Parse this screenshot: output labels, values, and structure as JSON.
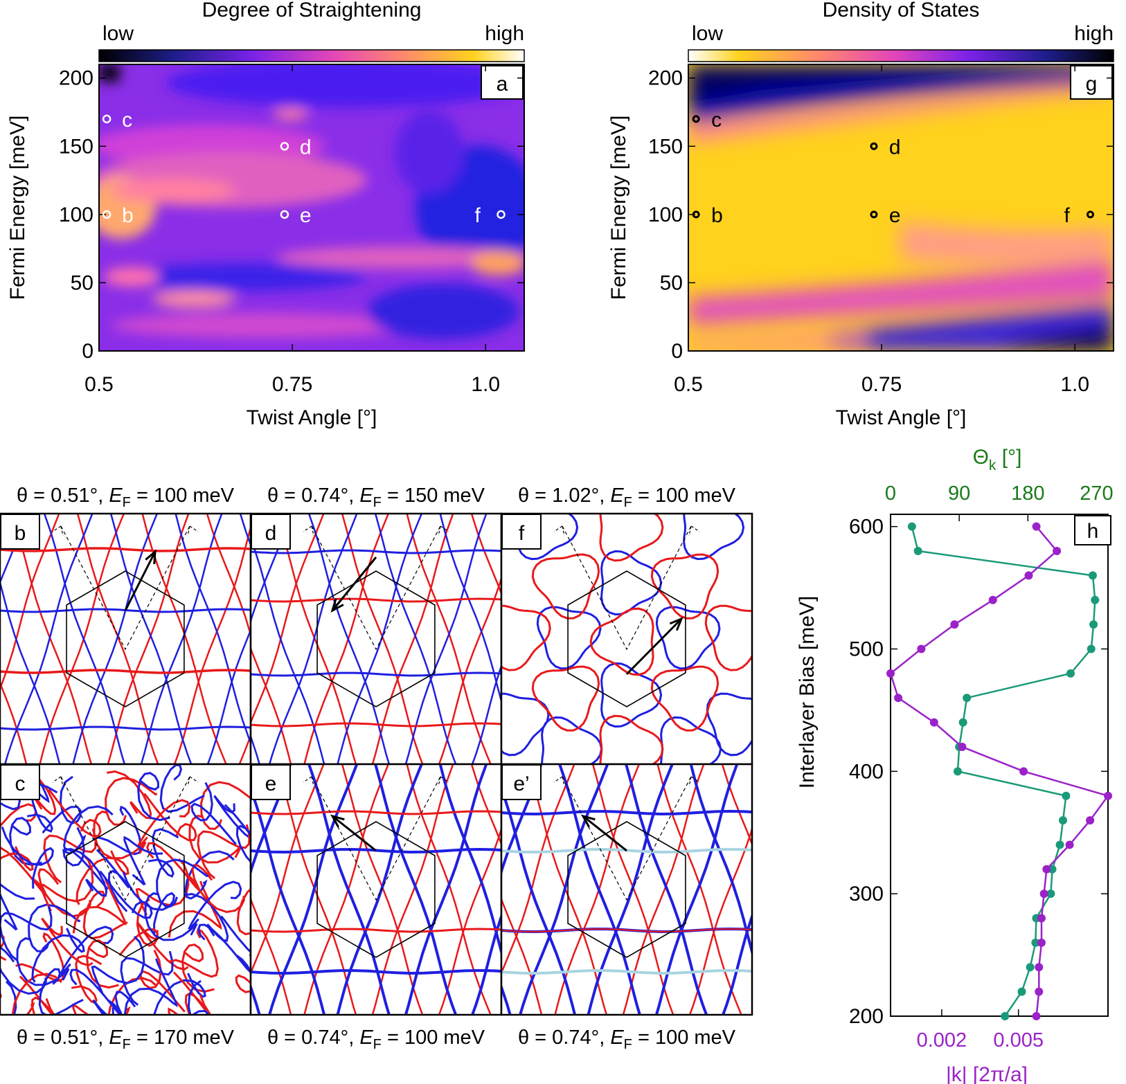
{
  "panel_a": {
    "title": "Degree of Straightening",
    "bar_low": "low",
    "bar_high": "high",
    "tag": "a",
    "xlabel": "Twist Angle [°]",
    "ylabel": "Fermi Energy [meV]",
    "xticks": [
      "0.5",
      "0.75",
      "1.0"
    ],
    "yticks": [
      "0",
      "50",
      "100",
      "150",
      "200"
    ],
    "markers": [
      {
        "label": "c",
        "theta": 0.51,
        "ef": 170
      },
      {
        "label": "d",
        "theta": 0.74,
        "ef": 150
      },
      {
        "label": "b",
        "theta": 0.51,
        "ef": 100
      },
      {
        "label": "e",
        "theta": 0.74,
        "ef": 100
      },
      {
        "label": "f",
        "theta": 1.02,
        "ef": 100
      }
    ]
  },
  "panel_g": {
    "title": "Density of States",
    "bar_low": "low",
    "bar_high": "high",
    "tag": "g",
    "xlabel": "Twist Angle [°]",
    "ylabel": "Fermi Energy [meV]",
    "xticks": [
      "0.5",
      "0.75",
      "1.0"
    ],
    "yticks": [
      "0",
      "50",
      "100",
      "150",
      "200"
    ],
    "markers": [
      {
        "label": "c",
        "theta": 0.51,
        "ef": 170
      },
      {
        "label": "d",
        "theta": 0.74,
        "ef": 150
      },
      {
        "label": "b",
        "theta": 0.51,
        "ef": 100
      },
      {
        "label": "e",
        "theta": 0.74,
        "ef": 100
      },
      {
        "label": "f",
        "theta": 1.02,
        "ef": 100
      }
    ]
  },
  "fermi_panels": [
    {
      "tag": "b",
      "caption": "θ = 0.51°, ",
      "ef_sym": "E",
      "ef_sub": "F",
      "ef_val": " = 100 meV"
    },
    {
      "tag": "d",
      "caption": "θ = 0.74°, ",
      "ef_sym": "E",
      "ef_sub": "F",
      "ef_val": " = 150 meV"
    },
    {
      "tag": "f",
      "caption": "θ = 1.02°, ",
      "ef_sym": "E",
      "ef_sub": "F",
      "ef_val": " = 100 meV"
    },
    {
      "tag": "c",
      "caption": "θ = 0.51°, ",
      "ef_sym": "E",
      "ef_sub": "F",
      "ef_val": " = 170 meV"
    },
    {
      "tag": "e",
      "caption": "θ = 0.74°, ",
      "ef_sym": "E",
      "ef_sub": "F",
      "ef_val": " = 100 meV"
    },
    {
      "tag": "e’",
      "caption": "θ = 0.74°, ",
      "ef_sym": "E",
      "ef_sub": "F",
      "ef_val": " = 100 meV"
    }
  ],
  "colors": {
    "red": "#e8191b",
    "blue": "#1f1fe0",
    "lightblue": "#a8d4e0",
    "green": "#1a9a78",
    "purple": "#9a22c8"
  },
  "chart_data": {
    "type": "line",
    "tag": "h",
    "ylabel": "Interlayer Bias [meV]",
    "ylim": [
      200,
      610
    ],
    "yticks": [
      "200",
      "300",
      "400",
      "500",
      "600"
    ],
    "top_axis_label": "Θ",
    "top_axis_sub": "k",
    "top_axis_unit": " [°]",
    "top_ticks": [
      "0",
      "90",
      "180",
      "270"
    ],
    "top_range": [
      0,
      285
    ],
    "bottom_axis_label": "|k| [2π/a]",
    "bottom_ticks": [
      "0.002",
      "0.005"
    ],
    "bottom_range": [
      0,
      0.0085
    ],
    "series": [
      {
        "name": "Θk",
        "axis": "top",
        "color": "#1a9a78",
        "y": [
          600,
          580,
          560,
          540,
          520,
          500,
          480,
          460,
          440,
          420,
          400,
          380,
          360,
          340,
          320,
          300,
          280,
          260,
          240,
          220,
          200
        ],
        "values": [
          28,
          36,
          265,
          268,
          266,
          263,
          236,
          100,
          95,
          90,
          88,
          230,
          226,
          222,
          212,
          210,
          191,
          190,
          183,
          172,
          150
        ]
      },
      {
        "name": "|k|",
        "axis": "bottom",
        "color": "#9a22c8",
        "y": [
          600,
          580,
          560,
          540,
          520,
          500,
          480,
          460,
          440,
          420,
          400,
          380,
          360,
          340,
          320,
          300,
          280,
          260,
          240,
          220,
          200
        ],
        "values": [
          0.0057,
          0.0065,
          0.0054,
          0.004,
          0.0025,
          0.0012,
          0.0,
          0.0003,
          0.0017,
          0.0028,
          0.0052,
          0.0085,
          0.0078,
          0.007,
          0.0061,
          0.006,
          0.0059,
          0.0059,
          0.0058,
          0.0058,
          0.0057
        ]
      }
    ]
  }
}
